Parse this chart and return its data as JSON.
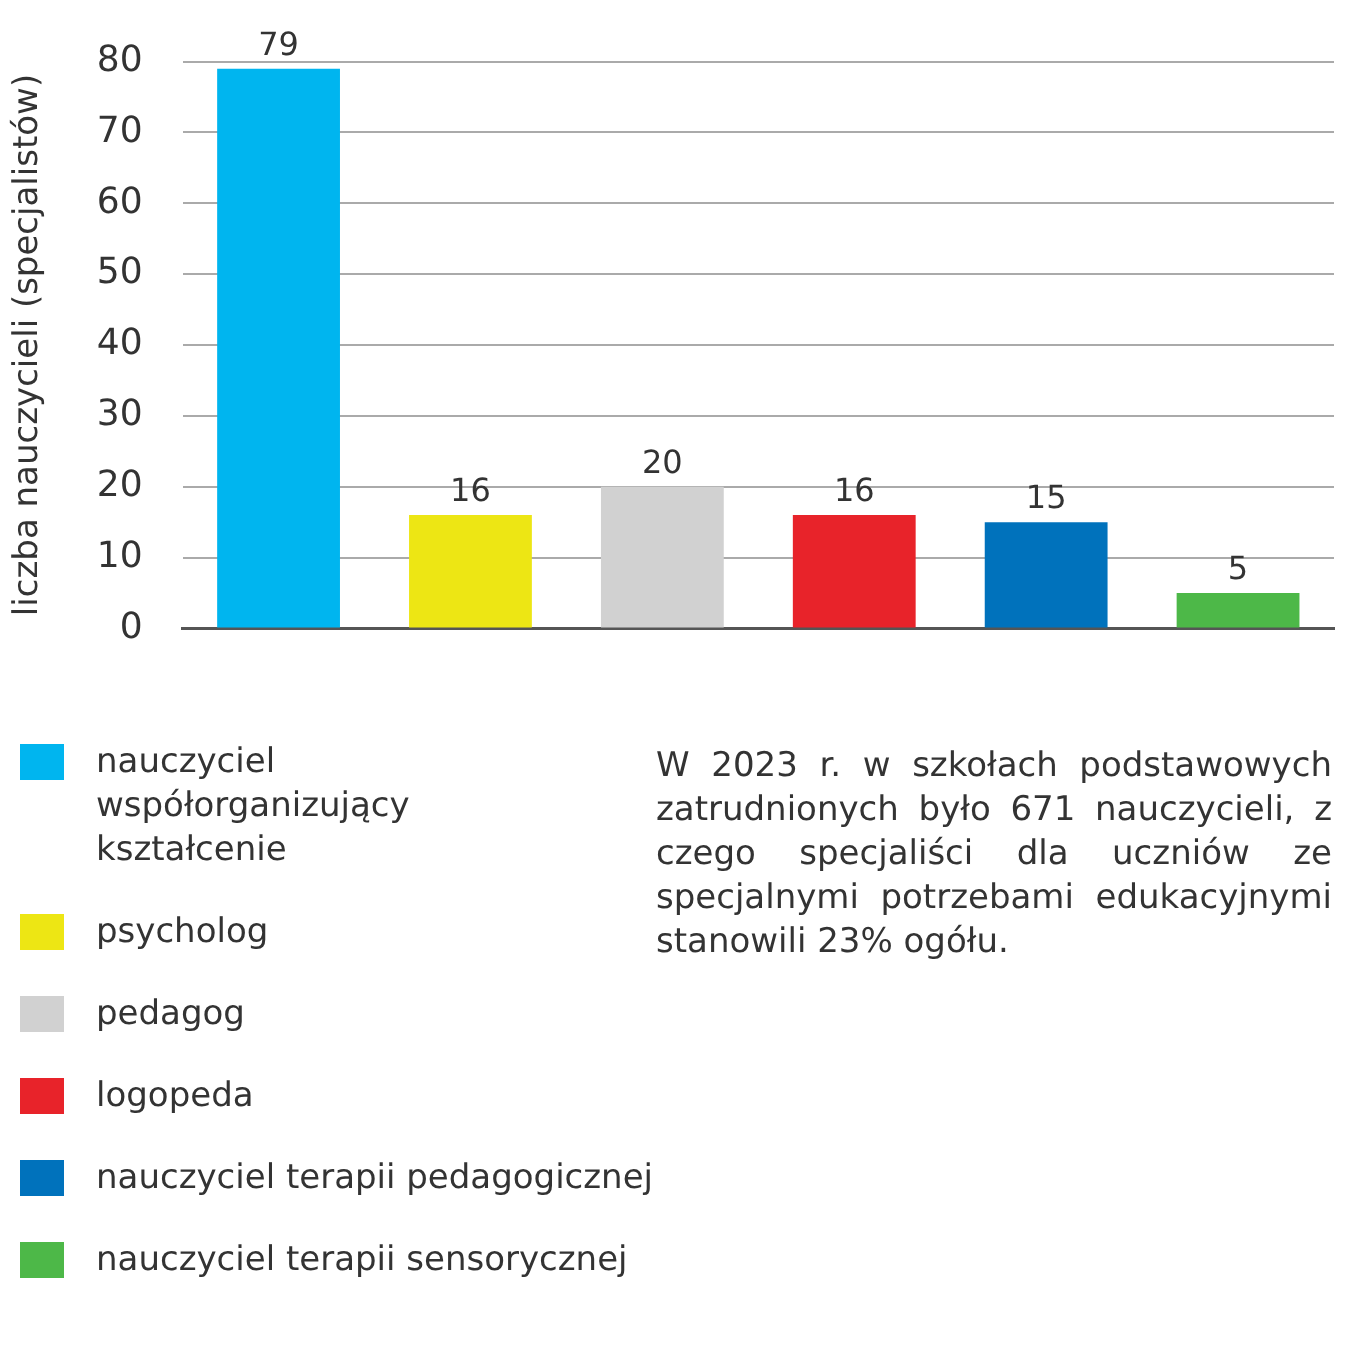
{
  "chart_data": {
    "type": "bar",
    "ylabel": "liczba nauczycieli (specjalistów)",
    "categories": [
      null,
      null,
      null,
      null,
      null,
      null
    ],
    "series": [
      {
        "name": "nauczyciel współorganizujący kształcenie",
        "color": "#00b5ef",
        "values": [
          79,
          null,
          null,
          null,
          null,
          null
        ]
      },
      {
        "name": "psycholog",
        "color": "#ede614",
        "values": [
          null,
          16,
          null,
          null,
          null,
          null
        ]
      },
      {
        "name": "pedagog",
        "color": "#d1d1d1",
        "values": [
          null,
          null,
          20,
          null,
          null,
          null
        ]
      },
      {
        "name": "logopeda",
        "color": "#e8232a",
        "values": [
          null,
          null,
          null,
          16,
          null,
          null
        ]
      },
      {
        "name": "nauczyciel terapii pedagogicznej",
        "color": "#0072bc",
        "values": [
          null,
          null,
          null,
          null,
          15,
          null
        ]
      },
      {
        "name": "nauczyciel terapii sensorycznej",
        "color": "#4db848",
        "values": [
          null,
          null,
          null,
          null,
          null,
          5
        ]
      }
    ],
    "ylim": [
      0,
      80
    ],
    "yticks": [
      0,
      10,
      20,
      30,
      40,
      50,
      60,
      70,
      80
    ],
    "grid": "y",
    "tick_labels": "y",
    "data_labels": true,
    "legend": "bottom",
    "annotations": [
      "W 2023 r. w szkołach podstawowych zatrudnionych było 671 nauczycieli, z czego specjaliści dla uczniów ze specjalnymi potrzebami edukacyjnymi stanowili 23% ogółu."
    ]
  }
}
